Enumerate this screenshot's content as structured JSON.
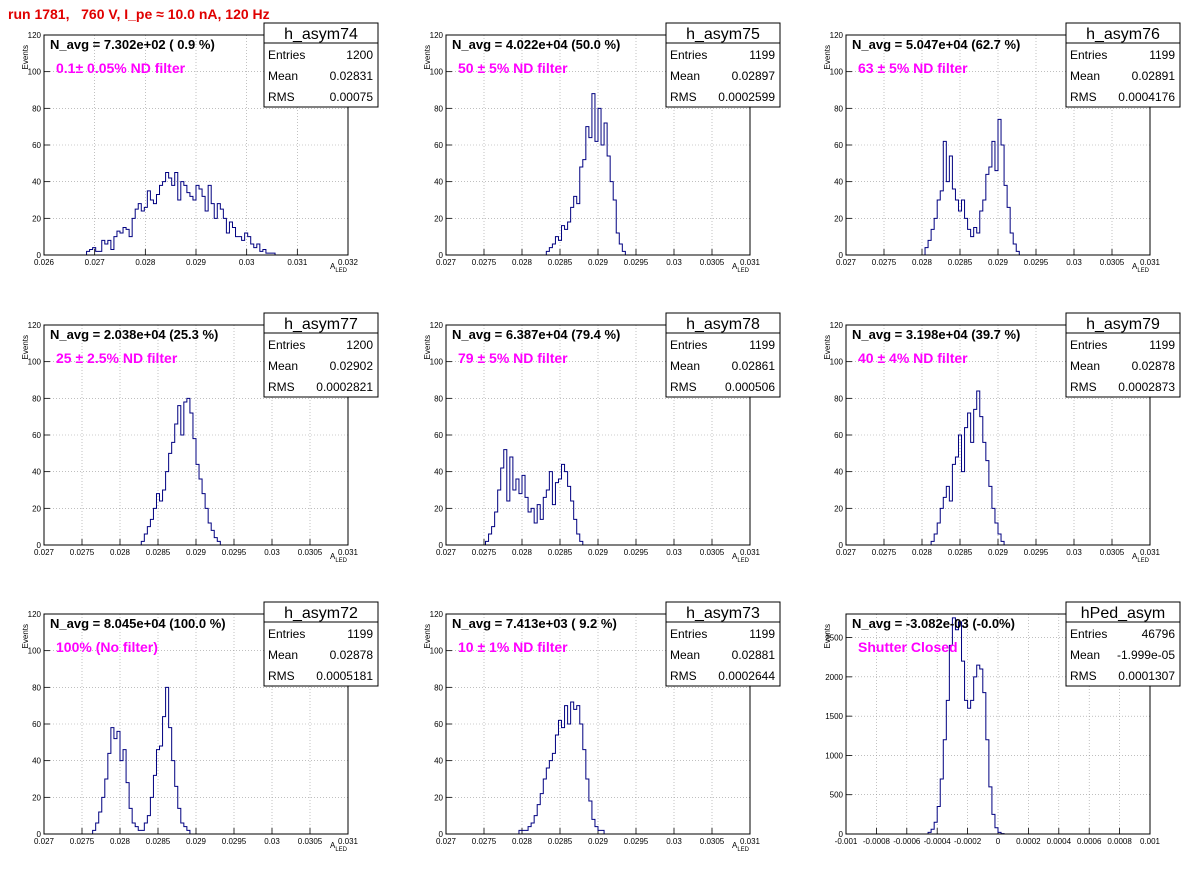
{
  "page_title": "run 1781,   760 V, I_pe ≈ 10.0 nA, 120 Hz",
  "style": {
    "hist_color": "#000080",
    "label_color": "#ff00ff",
    "title_color": "#e00000"
  },
  "stats_labels": {
    "entries": "Entries",
    "mean": "Mean",
    "rms": "RMS"
  },
  "chart_data": [
    {
      "type": "histogram",
      "name": "h_asym74",
      "navg": "N_avg = 7.302e+02 ( 0.9 %)",
      "filter": "0.1± 0.05% ND filter",
      "entries": "1200",
      "mean": "0.02831",
      "rms": "0.00075",
      "xlabel": "A",
      "xlabel_sub": "LED",
      "ylabel": "Events",
      "xlim": [
        0.026,
        0.032
      ],
      "ylim": [
        0,
        120
      ],
      "xticks": [
        0.026,
        0.027,
        0.028,
        0.029,
        0.03,
        0.031,
        0.032
      ],
      "xtick_labels": [
        "0.026",
        "0.027",
        "0.028",
        "0.029",
        "0.03",
        "0.031",
        "0.032"
      ],
      "yticks": [
        0,
        20,
        40,
        60,
        80,
        100,
        120
      ],
      "bins": {
        "start": 0.02684,
        "width": 6e-05,
        "counts": [
          2,
          3,
          4,
          2,
          2,
          8,
          6,
          8,
          3,
          10,
          13,
          12,
          15,
          14,
          10,
          20,
          25,
          28,
          24,
          26,
          35,
          30,
          28,
          33,
          38,
          40,
          45,
          42,
          38,
          45,
          30,
          40,
          38,
          34,
          32,
          30,
          38,
          36,
          32,
          24,
          38,
          28,
          20,
          28,
          25,
          20,
          12,
          18,
          15,
          10,
          10,
          8,
          12,
          10,
          6,
          4,
          6,
          2,
          3,
          1,
          1,
          1
        ]
      }
    },
    {
      "type": "histogram",
      "name": "h_asym75",
      "navg": "N_avg = 4.022e+04 (50.0 %)",
      "filter": "50 ± 5% ND filter",
      "entries": "1199",
      "mean": "0.02897",
      "rms": "0.0002599",
      "xlabel": "A",
      "xlabel_sub": "LED",
      "ylabel": "Events",
      "xlim": [
        0.027,
        0.031
      ],
      "ylim": [
        0,
        120
      ],
      "xticks": [
        0.027,
        0.0275,
        0.028,
        0.0285,
        0.029,
        0.0295,
        0.03,
        0.0305,
        0.031
      ],
      "xtick_labels": [
        "0.027",
        "0.0275",
        "0.028",
        "0.0285",
        "0.029",
        "0.0295",
        "0.03",
        "0.0305",
        "0.031"
      ],
      "yticks": [
        0,
        20,
        40,
        60,
        80,
        100,
        120
      ],
      "bins": {
        "start": 0.02832,
        "width": 4e-05,
        "counts": [
          2,
          4,
          6,
          10,
          8,
          16,
          14,
          18,
          26,
          32,
          28,
          48,
          52,
          70,
          64,
          88,
          62,
          80,
          60,
          72,
          54,
          40,
          30,
          12,
          6,
          2
        ]
      }
    },
    {
      "type": "histogram",
      "name": "h_asym76",
      "navg": "N_avg = 5.047e+04 (62.7 %)",
      "filter": "63 ± 5% ND filter",
      "entries": "1199",
      "mean": "0.02891",
      "rms": "0.0004176",
      "xlabel": "A",
      "xlabel_sub": "LED",
      "ylabel": "Events",
      "xlim": [
        0.027,
        0.031
      ],
      "ylim": [
        0,
        120
      ],
      "xticks": [
        0.027,
        0.0275,
        0.028,
        0.0285,
        0.029,
        0.0295,
        0.03,
        0.0305,
        0.031
      ],
      "xtick_labels": [
        "0.027",
        "0.0275",
        "0.028",
        "0.0285",
        "0.029",
        "0.0295",
        "0.03",
        "0.0305",
        "0.031"
      ],
      "yticks": [
        0,
        20,
        40,
        60,
        80,
        100,
        120
      ],
      "bins": {
        "start": 0.02804,
        "width": 4e-05,
        "counts": [
          4,
          8,
          14,
          20,
          30,
          35,
          62,
          40,
          54,
          36,
          30,
          24,
          30,
          20,
          14,
          10,
          15,
          12,
          24,
          30,
          44,
          48,
          62,
          46,
          74,
          60,
          38,
          26,
          12,
          6,
          2
        ]
      }
    },
    {
      "type": "histogram",
      "name": "h_asym77",
      "navg": "N_avg = 2.038e+04 (25.3 %)",
      "filter": "25 ± 2.5% ND filter",
      "entries": "1200",
      "mean": "0.02902",
      "rms": "0.0002821",
      "xlabel": "A",
      "xlabel_sub": "LED",
      "ylabel": "Events",
      "xlim": [
        0.027,
        0.031
      ],
      "ylim": [
        0,
        120
      ],
      "xticks": [
        0.027,
        0.0275,
        0.028,
        0.0285,
        0.029,
        0.0295,
        0.03,
        0.0305,
        0.031
      ],
      "xtick_labels": [
        "0.027",
        "0.0275",
        "0.028",
        "0.0285",
        "0.029",
        "0.0295",
        "0.03",
        "0.0305",
        "0.031"
      ],
      "yticks": [
        0,
        20,
        40,
        60,
        80,
        100,
        120
      ],
      "bins": {
        "start": 0.02828,
        "width": 4e-05,
        "counts": [
          2,
          6,
          10,
          14,
          20,
          28,
          24,
          30,
          40,
          50,
          56,
          66,
          76,
          60,
          78,
          80,
          72,
          58,
          44,
          36,
          28,
          20,
          12,
          8,
          4,
          2
        ]
      }
    },
    {
      "type": "histogram",
      "name": "h_asym78",
      "navg": "N_avg = 6.387e+04 (79.4 %)",
      "filter": "79 ± 5% ND filter",
      "entries": "1199",
      "mean": "0.02861",
      "rms": "0.000506",
      "xlabel": "A",
      "xlabel_sub": "LED",
      "ylabel": "Events",
      "xlim": [
        0.027,
        0.031
      ],
      "ylim": [
        0,
        120
      ],
      "xticks": [
        0.027,
        0.0275,
        0.028,
        0.0285,
        0.029,
        0.0295,
        0.03,
        0.0305,
        0.031
      ],
      "xtick_labels": [
        "0.027",
        "0.0275",
        "0.028",
        "0.0285",
        "0.029",
        "0.0295",
        "0.03",
        "0.0305",
        "0.031"
      ],
      "yticks": [
        0,
        20,
        40,
        60,
        80,
        100,
        120
      ],
      "bins": {
        "start": 0.02752,
        "width": 4e-05,
        "counts": [
          2,
          6,
          10,
          18,
          30,
          42,
          52,
          24,
          48,
          30,
          36,
          28,
          38,
          26,
          18,
          20,
          12,
          22,
          14,
          26,
          30,
          40,
          22,
          34,
          36,
          44,
          40,
          32,
          24,
          14,
          6,
          2
        ]
      }
    },
    {
      "type": "histogram",
      "name": "h_asym79",
      "navg": "N_avg = 3.198e+04 (39.7 %)",
      "filter": "40 ± 4% ND filter",
      "entries": "1199",
      "mean": "0.02878",
      "rms": "0.0002873",
      "xlabel": "A",
      "xlabel_sub": "LED",
      "ylabel": "Events",
      "xlim": [
        0.027,
        0.031
      ],
      "ylim": [
        0,
        120
      ],
      "xticks": [
        0.027,
        0.0275,
        0.028,
        0.0285,
        0.029,
        0.0295,
        0.03,
        0.0305,
        0.031
      ],
      "xtick_labels": [
        "0.027",
        "0.0275",
        "0.028",
        "0.0285",
        "0.029",
        "0.0295",
        "0.03",
        "0.0305",
        "0.031"
      ],
      "yticks": [
        0,
        20,
        40,
        60,
        80,
        100,
        120
      ],
      "bins": {
        "start": 0.02812,
        "width": 4e-05,
        "counts": [
          2,
          6,
          12,
          20,
          26,
          32,
          24,
          44,
          48,
          60,
          40,
          64,
          72,
          56,
          74,
          84,
          70,
          56,
          46,
          32,
          20,
          12,
          6,
          2
        ]
      }
    },
    {
      "type": "histogram",
      "name": "h_asym72",
      "navg": "N_avg = 8.045e+04 (100.0 %)",
      "filter": "100% (No filter)",
      "entries": "1199",
      "mean": "0.02878",
      "rms": "0.0005181",
      "xlabel": "A",
      "xlabel_sub": "LED",
      "ylabel": "Events",
      "xlim": [
        0.027,
        0.031
      ],
      "ylim": [
        0,
        120
      ],
      "xticks": [
        0.027,
        0.0275,
        0.028,
        0.0285,
        0.029,
        0.0295,
        0.03,
        0.0305,
        0.031
      ],
      "xtick_labels": [
        "0.027",
        "0.0275",
        "0.028",
        "0.0285",
        "0.029",
        "0.0295",
        "0.03",
        "0.0305",
        "0.031"
      ],
      "yticks": [
        0,
        20,
        40,
        60,
        80,
        100,
        120
      ],
      "bins": {
        "start": 0.02764,
        "width": 4e-05,
        "counts": [
          2,
          6,
          12,
          20,
          30,
          44,
          58,
          52,
          56,
          40,
          46,
          28,
          14,
          6,
          4,
          2,
          2,
          6,
          10,
          20,
          32,
          46,
          48,
          64,
          80,
          58,
          40,
          26,
          14,
          6,
          4,
          2
        ]
      }
    },
    {
      "type": "histogram",
      "name": "h_asym73",
      "navg": "N_avg = 7.413e+03 ( 9.2 %)",
      "filter": "10 ± 1% ND filter",
      "entries": "1199",
      "mean": "0.02881",
      "rms": "0.0002644",
      "xlabel": "A",
      "xlabel_sub": "LED",
      "ylabel": "Events",
      "xlim": [
        0.027,
        0.031
      ],
      "ylim": [
        0,
        120
      ],
      "xticks": [
        0.027,
        0.0275,
        0.028,
        0.0285,
        0.029,
        0.0295,
        0.03,
        0.0305,
        0.031
      ],
      "xtick_labels": [
        "0.027",
        "0.0275",
        "0.028",
        "0.0285",
        "0.029",
        "0.0295",
        "0.03",
        "0.0305",
        "0.031"
      ],
      "yticks": [
        0,
        20,
        40,
        60,
        80,
        100,
        120
      ],
      "bins": {
        "start": 0.02796,
        "width": 4e-05,
        "counts": [
          2,
          2,
          2,
          4,
          6,
          10,
          16,
          22,
          30,
          36,
          40,
          44,
          54,
          62,
          58,
          70,
          60,
          72,
          68,
          70,
          60,
          46,
          30,
          18,
          8,
          4,
          2,
          2
        ]
      }
    },
    {
      "type": "histogram",
      "name": "hPed_asym",
      "navg": "N_avg = -3.082e-03 (-0.0%)",
      "filter": "Shutter Closed",
      "entries": "46796",
      "mean": "-1.999e-05",
      "rms": "0.0001307",
      "xlabel": "",
      "xlabel_sub": "",
      "ylabel": "Events",
      "xlim": [
        -0.001,
        0.001
      ],
      "ylim": [
        0,
        2800
      ],
      "xticks": [
        -0.001,
        -0.0008,
        -0.0006,
        -0.0004,
        -0.0002,
        0,
        0.0002,
        0.0004,
        0.0006,
        0.0008,
        0.001
      ],
      "xtick_labels": [
        "-0.001",
        "-0.0008",
        "-0.0006",
        "-0.0004",
        "-0.0002",
        "0",
        "0.0002",
        "0.0004",
        "0.0006",
        "0.0008",
        "0.001"
      ],
      "yticks": [
        0,
        500,
        1000,
        1500,
        2000,
        2500
      ],
      "bins": {
        "start": -0.00046,
        "width": 2e-05,
        "counts": [
          20,
          60,
          150,
          350,
          700,
          1200,
          1700,
          2400,
          2750,
          2600,
          2700,
          2200,
          1700,
          1600,
          1700,
          2000,
          2150,
          2100,
          1800,
          1200,
          600,
          250,
          80,
          20,
          5
        ]
      }
    }
  ]
}
